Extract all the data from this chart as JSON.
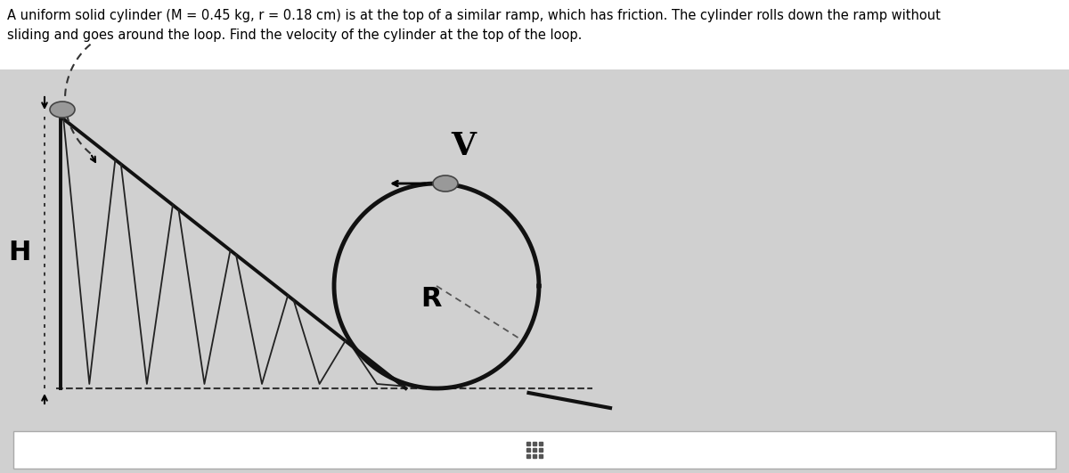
{
  "title_line1": "A uniform solid cylinder (M = 0.45 kg, r = 0.18 cm) is at the top of a similar ramp, which has friction. The cylinder rolls down the ramp without",
  "title_line2": "sliding and goes around the loop. Find the velocity of the cylinder at the top of the loop.",
  "title_fontsize": 10.5,
  "bg_color": "#d0d0d0",
  "diagram_bg": "#d8d8d8",
  "white_top_bg": "#ffffff",
  "ramp_color": "#111111",
  "ramp_lw": 2.8,
  "loop_lw": 3.0,
  "friction_lw": 1.3,
  "dashed_lw": 1.4,
  "H_label": "H",
  "V_label": "V",
  "R_label": "R",
  "label_fontsize": 22,
  "V_fontsize": 26,
  "cyl_color": "#999999",
  "cyl_edge": "#444444",
  "bottom_toolbar_color": "#ffffff",
  "bottom_toolbar_edge": "#aaaaaa"
}
